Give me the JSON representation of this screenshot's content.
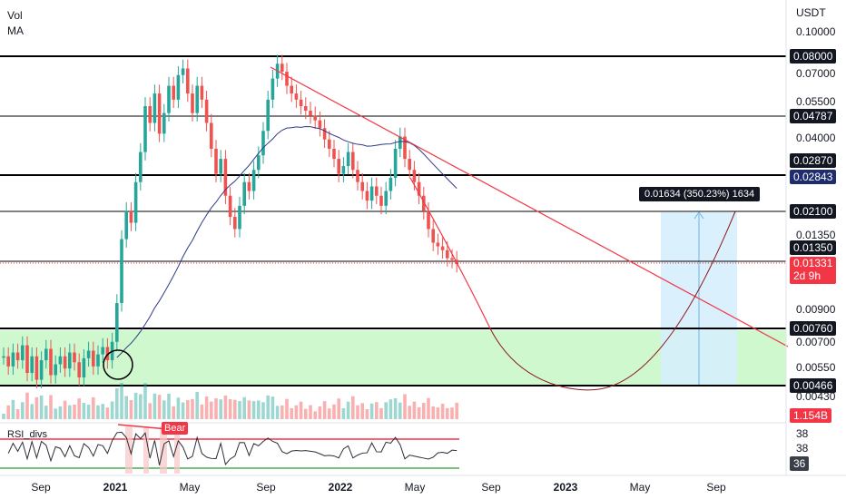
{
  "header": {
    "legend_vol": "Vol",
    "legend_ma": "MA",
    "currency": "USDT"
  },
  "price_axis": {
    "ticks": [
      "0.10000",
      "0.07000",
      "0.05500",
      "0.04000",
      "0.01350",
      "0.00900",
      "0.00700",
      "0.00550",
      "0.00430"
    ],
    "level_tags": [
      {
        "label": "0.08000",
        "style": "black"
      },
      {
        "label": "0.04787",
        "style": "black"
      },
      {
        "label": "0.02870",
        "style": "black"
      },
      {
        "label": "0.02843",
        "style": "navy"
      },
      {
        "label": "0.02100",
        "style": "black"
      },
      {
        "label": "0.01350",
        "style": "black"
      },
      {
        "label": "0.00760",
        "style": "black"
      },
      {
        "label": "0.00466",
        "style": "black"
      }
    ],
    "current_price": "0.01331",
    "countdown": "2d 9h",
    "volume_tag": "1.154B"
  },
  "time_axis": {
    "labels": [
      {
        "label": "Sep",
        "bold": false
      },
      {
        "label": "2021",
        "bold": true
      },
      {
        "label": "May",
        "bold": false
      },
      {
        "label": "Sep",
        "bold": false
      },
      {
        "label": "2022",
        "bold": true
      },
      {
        "label": "May",
        "bold": false
      },
      {
        "label": "Sep",
        "bold": false
      },
      {
        "label": "2023",
        "bold": true
      },
      {
        "label": "May",
        "bold": false
      },
      {
        "label": "Sep",
        "bold": false
      }
    ]
  },
  "measure": {
    "text": "0.01634 (350.23%) 1634"
  },
  "rsi": {
    "label": "RSI_divs",
    "bear_label": "Bear",
    "axis_values": [
      "38",
      "38"
    ],
    "current_value": "36"
  },
  "colors": {
    "up": "#26a69a",
    "down": "#ef5350",
    "ma": "#2e3a87",
    "trendline": "#f23645",
    "support_zone": "#c8f7c5",
    "measure_zone": "#d6eefc",
    "rsi_line": "#2a2e39"
  },
  "chart_data": {
    "type": "candlestick",
    "price_scale": "log",
    "currency": "USDT",
    "horizontal_levels": [
      0.08,
      0.04787,
      0.0287,
      0.02843,
      0.021,
      0.0135,
      0.0076,
      0.00466
    ],
    "support_zone": [
      0.00466,
      0.0076
    ],
    "current_price": 0.01331,
    "measured_move": {
      "from": 0.00466,
      "to": 0.021,
      "change": 0.01634,
      "percent": 350.23,
      "bars": 1634
    },
    "candles_close_approx": [
      0.006,
      0.0055,
      0.0062,
      0.0058,
      0.0066,
      0.0052,
      0.006,
      0.0049,
      0.0058,
      0.0064,
      0.0051,
      0.0056,
      0.006,
      0.0054,
      0.0062,
      0.0057,
      0.005,
      0.0059,
      0.0063,
      0.0055,
      0.0061,
      0.0065,
      0.0058,
      0.0068,
      0.0095,
      0.0165,
      0.021,
      0.019,
      0.027,
      0.035,
      0.052,
      0.045,
      0.058,
      0.041,
      0.049,
      0.062,
      0.055,
      0.068,
      0.072,
      0.058,
      0.049,
      0.062,
      0.055,
      0.045,
      0.036,
      0.029,
      0.033,
      0.024,
      0.02,
      0.018,
      0.022,
      0.027,
      0.025,
      0.03,
      0.034,
      0.042,
      0.055,
      0.066,
      0.075,
      0.07,
      0.062,
      0.058,
      0.055,
      0.052,
      0.05,
      0.048,
      0.046,
      0.043,
      0.039,
      0.036,
      0.033,
      0.029,
      0.031,
      0.035,
      0.03,
      0.027,
      0.025,
      0.023,
      0.026,
      0.024,
      0.022,
      0.025,
      0.028,
      0.036,
      0.04,
      0.033,
      0.03,
      0.027,
      0.024,
      0.021,
      0.018,
      0.016,
      0.0155,
      0.015,
      0.014,
      0.0138,
      0.0133
    ]
  }
}
